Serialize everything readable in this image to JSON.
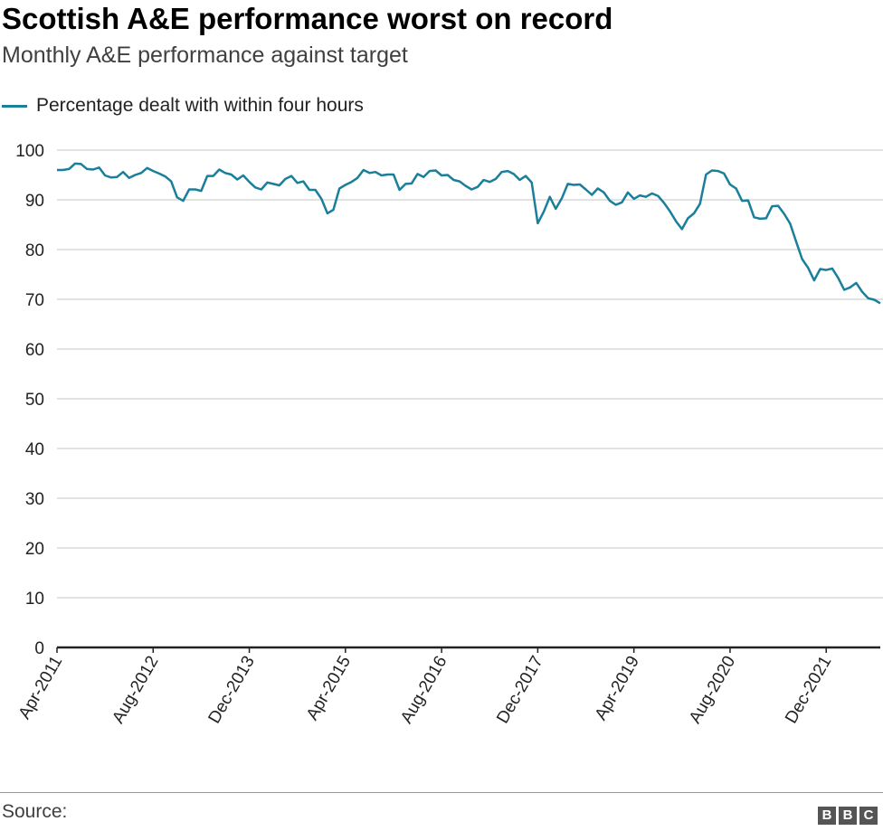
{
  "chart_data": {
    "type": "line",
    "title": "Scottish A&E performance worst on record",
    "subtitle": "Monthly A&E performance against target",
    "xlabel": "",
    "ylabel": "",
    "ylim": [
      0,
      100
    ],
    "yticks": [
      0,
      10,
      20,
      30,
      40,
      50,
      60,
      70,
      80,
      90,
      100
    ],
    "xtick_labels": [
      "Apr-2011",
      "Aug-2012",
      "Dec-2013",
      "Apr-2015",
      "Aug-2016",
      "Dec-2017",
      "Apr-2019",
      "Aug-2020",
      "Dec-2021"
    ],
    "xtick_interval_months": 16,
    "start_month": "Apr-2011",
    "grid": true,
    "legend_placement": "top-left",
    "color": "#1a7f9a",
    "series": [
      {
        "name": "Percentage dealt with within four hours",
        "values": [
          96,
          96,
          96.2,
          97.3,
          97.2,
          96.2,
          96.1,
          96.5,
          94.9,
          94.5,
          94.6,
          95.6,
          94.4,
          95,
          95.4,
          96.4,
          95.8,
          95.3,
          94.7,
          93.7,
          90.5,
          89.8,
          92.1,
          92.1,
          91.8,
          94.8,
          94.8,
          96.1,
          95.4,
          95.1,
          94.1,
          94.9,
          93.6,
          92.5,
          92.1,
          93.5,
          93.2,
          92.9,
          94.2,
          94.8,
          93.4,
          93.7,
          92,
          92,
          90.2,
          87.3,
          88,
          92.3,
          93,
          93.6,
          94.4,
          96,
          95.4,
          95.6,
          94.9,
          95.1,
          95.1,
          92,
          93.2,
          93.3,
          95.2,
          94.6,
          95.8,
          95.9,
          94.9,
          95,
          94,
          93.7,
          92.8,
          92.1,
          92.6,
          94,
          93.6,
          94.2,
          95.6,
          95.8,
          95.2,
          94,
          94.8,
          93.5,
          85.3,
          87.6,
          90.6,
          88.2,
          90.3,
          93.2,
          93,
          93.1,
          92.1,
          91,
          92.3,
          91.5,
          89.8,
          89,
          89.5,
          91.5,
          90.2,
          90.9,
          90.6,
          91.3,
          90.8,
          89.4,
          87.7,
          85.7,
          84.1,
          86.3,
          87.3,
          89.2,
          95.1,
          95.9,
          95.8,
          95.3,
          93.1,
          92.3,
          89.8,
          89.9,
          86.5,
          86.2,
          86.3,
          88.7,
          88.8,
          87.2,
          85.2,
          81.6,
          78.1,
          76.3,
          73.8,
          76.1,
          75.9,
          76.2,
          74.3,
          71.9,
          72.4,
          73.3,
          71.5,
          70.2,
          69.9,
          69.2
        ]
      }
    ]
  },
  "footer": {
    "source": "Source:",
    "logo": "BBC"
  }
}
